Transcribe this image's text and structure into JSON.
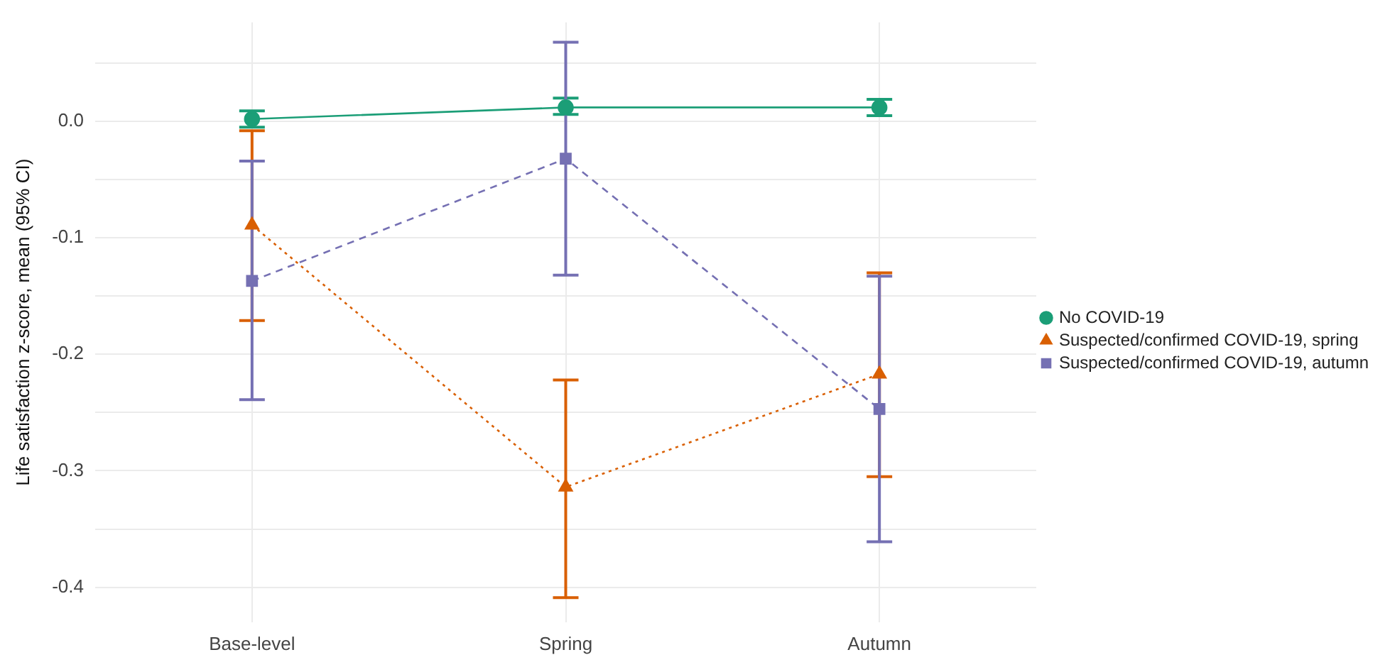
{
  "chart_data": {
    "type": "line",
    "ylabel": "Life satisfaction z-score, mean (95% CI)",
    "categories": [
      "Base-level",
      "Spring",
      "Autumn"
    ],
    "series": [
      {
        "name": "No COVID-19",
        "color": "#1b9e77",
        "marker": "circle",
        "line_style": "solid",
        "values": [
          0.002,
          0.012,
          0.012
        ],
        "errors": [
          [
            -0.005,
            0.009
          ],
          [
            0.006,
            0.02
          ],
          [
            0.005,
            0.019
          ]
        ]
      },
      {
        "name": "Suspected/confirmed COVID-19, spring",
        "color": "#d95f02",
        "marker": "triangle",
        "line_style": "dotted",
        "values": [
          -0.089,
          -0.314,
          -0.217
        ],
        "errors": [
          [
            -0.171,
            -0.008
          ],
          [
            -0.409,
            -0.222
          ],
          [
            -0.305,
            -0.13
          ]
        ]
      },
      {
        "name": "Suspected/confirmed COVID-19, autumn",
        "color": "#7570b3",
        "marker": "square",
        "line_style": "dashed",
        "values": [
          -0.137,
          -0.032,
          -0.247
        ],
        "errors": [
          [
            -0.239,
            -0.034
          ],
          [
            -0.132,
            0.068
          ],
          [
            -0.361,
            -0.133
          ]
        ]
      }
    ],
    "ylim": [
      -0.43,
      0.085
    ],
    "yticks": [
      {
        "value": -0.4,
        "label": "-0.4"
      },
      {
        "value": -0.35,
        "label": null
      },
      {
        "value": -0.3,
        "label": "-0.3"
      },
      {
        "value": -0.25,
        "label": null
      },
      {
        "value": -0.2,
        "label": "-0.2"
      },
      {
        "value": -0.15,
        "label": null
      },
      {
        "value": -0.1,
        "label": "-0.1"
      },
      {
        "value": -0.05,
        "label": null
      },
      {
        "value": 0,
        "label": "0.0"
      },
      {
        "value": 0.05,
        "label": null
      }
    ],
    "grid": true,
    "legend": "right"
  }
}
